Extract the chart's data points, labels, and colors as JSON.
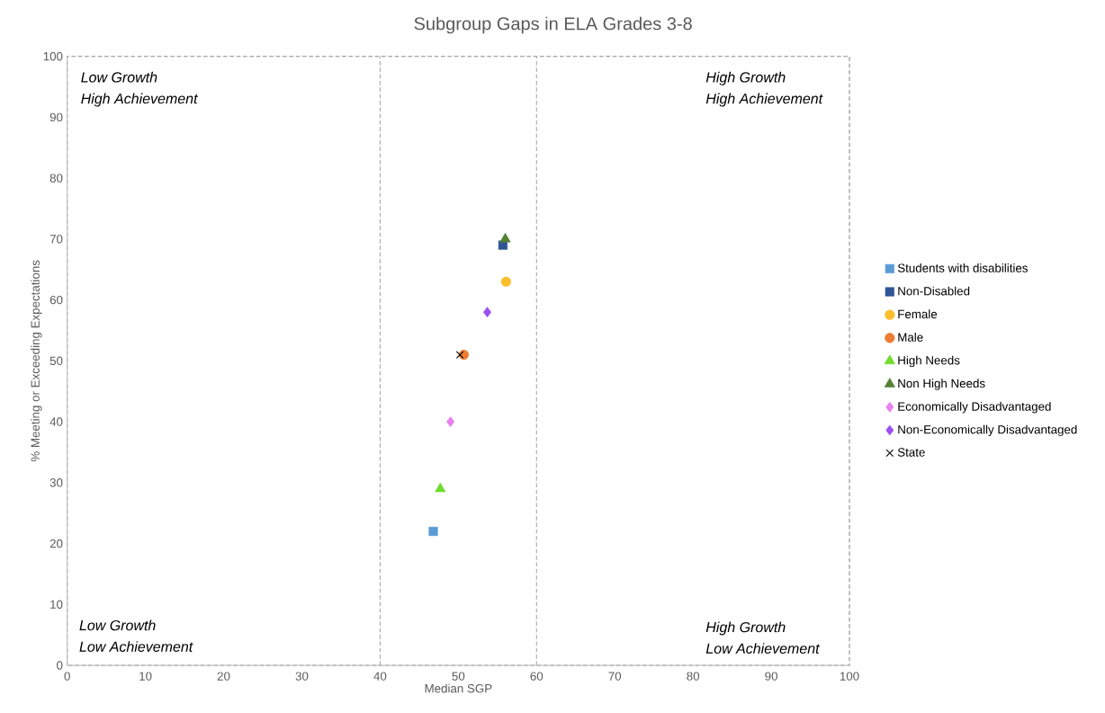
{
  "chart_data": {
    "type": "scatter",
    "title": "Subgroup Gaps in ELA Grades 3-8",
    "xlabel": "Median SGP",
    "ylabel": "% Meeting or Exceeding Expectations",
    "xlim": [
      0,
      100
    ],
    "ylim": [
      0,
      100
    ],
    "xticks": [
      0,
      10,
      20,
      30,
      40,
      50,
      60,
      70,
      80,
      90,
      100
    ],
    "yticks": [
      0,
      10,
      20,
      30,
      40,
      50,
      60,
      70,
      80,
      90,
      100
    ],
    "grid": false,
    "legend": "right",
    "series": [
      {
        "name": "Students with disabilities",
        "color": "#5b9bd5",
        "marker": "square",
        "x": [
          46.8
        ],
        "values": [
          22
        ]
      },
      {
        "name": "Non-Disabled",
        "color": "#2f5597",
        "marker": "square",
        "x": [
          55.7
        ],
        "values": [
          69
        ]
      },
      {
        "name": "Female",
        "color": "#fbbf2d",
        "marker": "circle",
        "x": [
          56.1
        ],
        "values": [
          63
        ]
      },
      {
        "name": "Male",
        "color": "#ed7d31",
        "marker": "circle",
        "x": [
          50.7
        ],
        "values": [
          51
        ]
      },
      {
        "name": "High Needs",
        "color": "#6fdc2a",
        "marker": "triangle",
        "x": [
          47.7
        ],
        "values": [
          29
        ]
      },
      {
        "name": "Non High Needs",
        "color": "#548235",
        "marker": "triangle",
        "x": [
          56
        ],
        "values": [
          70
        ]
      },
      {
        "name": "Economically Disadvantaged",
        "color": "#e97ff0",
        "marker": "diamond",
        "x": [
          49
        ],
        "values": [
          40
        ]
      },
      {
        "name": "Non-Economically Disadvantaged",
        "color": "#9b4ff0",
        "marker": "diamond",
        "x": [
          53.7
        ],
        "values": [
          58
        ]
      },
      {
        "name": "State",
        "color": "#000000",
        "marker": "cross",
        "x": [
          50.2
        ],
        "values": [
          51
        ]
      }
    ],
    "ref_lines": [
      {
        "axis": "x",
        "value": 40,
        "color": "#a6a6a6",
        "line_style": "dashed"
      },
      {
        "axis": "x",
        "value": 60,
        "color": "#a6a6a6",
        "line_style": "dashed"
      }
    ],
    "annotations": [
      "Low Growth",
      "High Achievement",
      "High Growth",
      "High Achievement",
      "Low Growth",
      "Low Achievement",
      "High Growth",
      "Low Achievement"
    ]
  }
}
